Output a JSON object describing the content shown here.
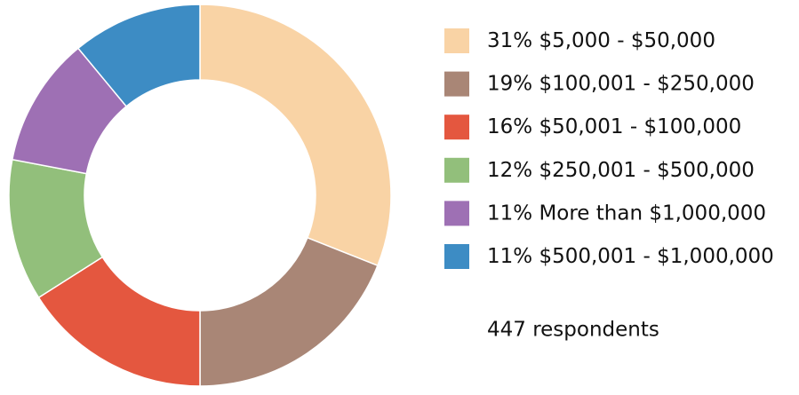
{
  "chart_data": {
    "type": "donut",
    "categories": [
      "$5,000 - $50,000",
      "$100,001 - $250,000",
      "$50,001 - $100,000",
      "$250,001 - $500,000",
      "More than $1,000,000",
      "$500,001 - $1,000,000"
    ],
    "values": [
      31,
      19,
      16,
      12,
      11,
      11
    ],
    "value_labels": [
      "31%",
      "19%",
      "16%",
      "12%",
      "11%",
      "11%"
    ],
    "colors": [
      "#f9d3a5",
      "#a98676",
      "#e4573f",
      "#92bf7b",
      "#9e70b4",
      "#3d8cc4"
    ],
    "annotation": "447 respondents"
  }
}
